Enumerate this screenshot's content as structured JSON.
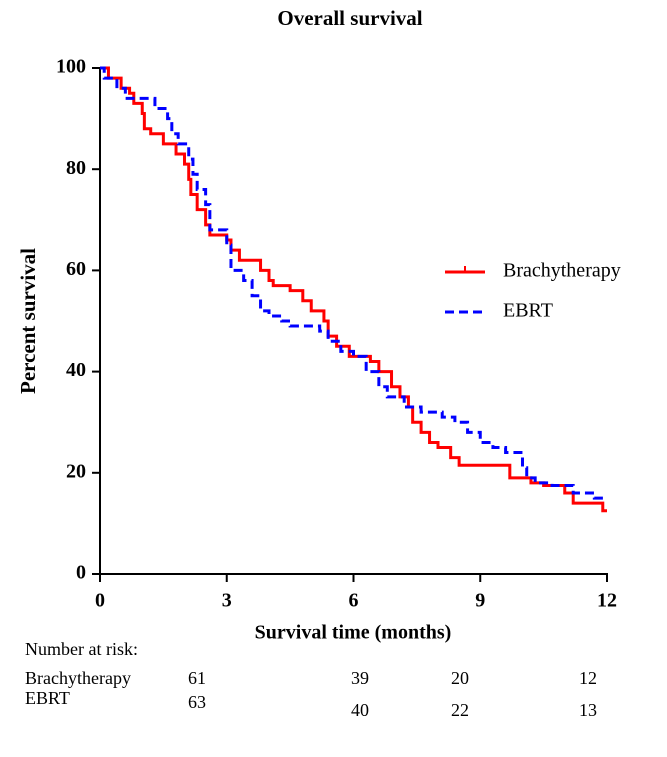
{
  "chart_data": {
    "type": "step",
    "title": "Overall survival",
    "x_label": "Survival time (months)",
    "y_label": "Percent survival",
    "xlim": [
      0,
      12
    ],
    "ylim": [
      0,
      100
    ],
    "xticks": [
      0,
      3,
      6,
      9,
      12
    ],
    "yticks": [
      0,
      20,
      40,
      60,
      80,
      100
    ],
    "legend": "right",
    "series": [
      {
        "name": "Brachytherapy",
        "color": "#ff0000",
        "dash": false,
        "x": [
          0,
          0.2,
          0.5,
          0.7,
          0.8,
          1.0,
          1.05,
          1.2,
          1.5,
          1.8,
          2.0,
          2.1,
          2.15,
          2.3,
          2.5,
          2.6,
          3.0,
          3.1,
          3.3,
          3.8,
          4.0,
          4.1,
          4.5,
          4.8,
          5.0,
          5.3,
          5.4,
          5.6,
          5.9,
          6.4,
          6.6,
          6.9,
          7.1,
          7.3,
          7.4,
          7.6,
          7.8,
          8.0,
          8.3,
          8.5,
          9.7,
          10.2,
          10.5,
          11.0,
          11.2,
          11.9
        ],
        "values": [
          100,
          98,
          96,
          95,
          93,
          91,
          88,
          87,
          85,
          83,
          81,
          78,
          75,
          72,
          69,
          67,
          66,
          64,
          62,
          60,
          58,
          57,
          56,
          54,
          52,
          50,
          47,
          45,
          43,
          42,
          40,
          37,
          35,
          33,
          30,
          28,
          26,
          25,
          23,
          21.5,
          19,
          18,
          17.5,
          16,
          14,
          12.5
        ]
      },
      {
        "name": "EBRT",
        "color": "#0000ff",
        "dash": true,
        "x": [
          0,
          0.1,
          0.4,
          0.6,
          1.3,
          1.6,
          1.7,
          1.85,
          2.1,
          2.2,
          2.3,
          2.5,
          2.6,
          3.0,
          3.1,
          3.4,
          3.6,
          3.8,
          4.0,
          4.3,
          4.5,
          5.2,
          5.4,
          5.7,
          6.0,
          6.3,
          6.6,
          6.8,
          7.2,
          7.6,
          8.1,
          8.4,
          8.7,
          9.0,
          9.3,
          9.6,
          10.0,
          10.1,
          10.3,
          10.7,
          11.2,
          11.7
        ],
        "values": [
          100,
          98,
          96,
          94,
          92,
          90,
          87,
          85,
          82,
          79,
          76,
          73,
          68,
          65,
          60,
          58,
          55,
          52,
          51,
          50,
          49,
          48,
          46,
          44,
          43,
          40,
          37,
          35,
          33,
          32,
          31,
          30,
          28,
          26,
          25,
          24,
          21,
          19,
          18,
          17.5,
          16,
          15
        ]
      }
    ],
    "risk_table": {
      "title": "Number at risk:",
      "rows": [
        {
          "name": "Brachytherapy",
          "values": [
            "61",
            "39",
            "20",
            "12"
          ]
        },
        {
          "name": "EBRT",
          "values": [
            "63",
            "40",
            "22",
            "13"
          ]
        }
      ]
    }
  }
}
